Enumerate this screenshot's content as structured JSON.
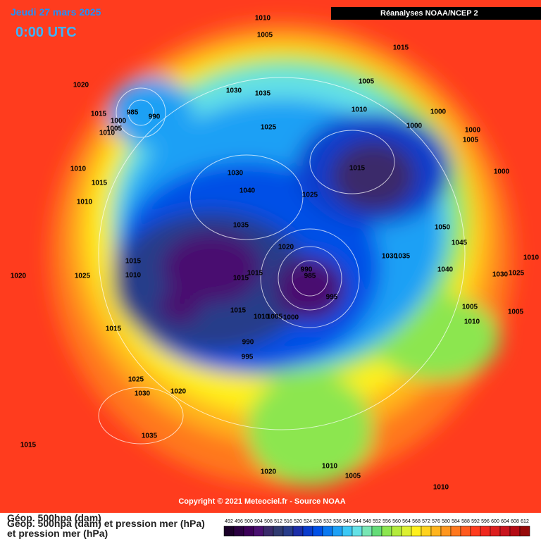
{
  "header": {
    "date": "Jeudi 27 mars 2025",
    "time": "0:00 UTC",
    "source": "Réanalyses NOAA/NCEP 2",
    "copyright": "Copyright © 2021 Meteociel.fr - Source NOAA"
  },
  "legend": {
    "lines": [
      "Géop. 500hpa (dam)",
      "Géop. 500hpa (dam) et pression mer (hPa)",
      "et pression mer (hPa)"
    ],
    "scale": [
      492,
      496,
      500,
      504,
      508,
      512,
      516,
      520,
      524,
      528,
      532,
      536,
      540,
      544,
      548,
      552,
      556,
      560,
      564,
      568,
      572,
      576,
      580,
      584,
      588,
      592,
      596,
      600,
      604,
      608,
      612
    ],
    "colors": [
      "#1a0028",
      "#2a0040",
      "#3c0058",
      "#4a1070",
      "#3a2a6a",
      "#303a70",
      "#283c8a",
      "#1c2ea8",
      "#0a3ccc",
      "#0050e6",
      "#0a78f0",
      "#1ea0f5",
      "#3cc8f5",
      "#64e1e6",
      "#78e6b4",
      "#64dc78",
      "#8ce650",
      "#b4eb3c",
      "#dcf032",
      "#fff01e",
      "#ffd21e",
      "#ffb41e",
      "#ff961e",
      "#ff781e",
      "#ff5a1e",
      "#ff3c1e",
      "#f0281e",
      "#dc1e1e",
      "#c8141e",
      "#b40a14",
      "#960a0a"
    ]
  },
  "isobar_labels": [
    1010,
    1005,
    1015,
    1020,
    1030,
    1035,
    1005,
    1010,
    1000,
    985,
    990,
    1015,
    1000,
    1005,
    1010,
    1025,
    1000,
    1000,
    1005,
    1010,
    1015,
    1000,
    1030,
    1015,
    1040,
    1025,
    1010,
    1035,
    1050,
    1045,
    1020,
    1015,
    1035,
    1030,
    1040,
    1010,
    1025,
    1030,
    990,
    985,
    1010,
    1015,
    1015,
    1025,
    1020,
    995,
    1005,
    1005,
    1015,
    1010,
    1005,
    1000,
    1010,
    1015,
    990,
    995,
    1025,
    1030,
    1020,
    1035,
    1015,
    1020,
    1010,
    1005,
    1010
  ]
}
